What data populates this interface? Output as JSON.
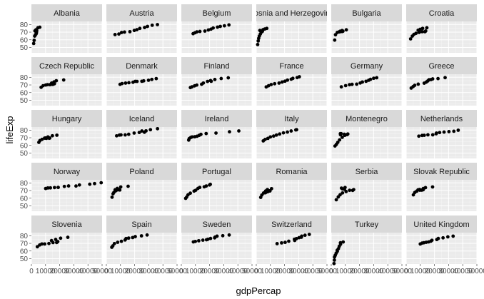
{
  "chart_data": {
    "type": "scatter",
    "xlabel": "gdpPercap",
    "ylabel": "lifeExp",
    "xlim": [
      0,
      50000
    ],
    "ylim": [
      43,
      84
    ],
    "x_ticks": [
      0,
      10000,
      20000,
      30000,
      40000,
      50000
    ],
    "x_tick_labels": [
      "0",
      "10000",
      "20000",
      "30000",
      "40000",
      "50000"
    ],
    "y_ticks": [
      50,
      60,
      70,
      80
    ],
    "y_tick_labels": [
      "50",
      "60",
      "70",
      "80"
    ],
    "grid": true,
    "panel_background": "#ebebeb",
    "strip_background": "#d9d9d9",
    "point_color": "#000000",
    "panels": [
      {
        "name": "Albania",
        "x": [
          1601,
          1942,
          2313,
          2760,
          3313,
          3533,
          3631,
          3739,
          2497,
          3193,
          4604,
          5937
        ],
        "y": [
          55.2,
          59.3,
          64.8,
          66.2,
          67.7,
          68.9,
          70.4,
          72.0,
          71.6,
          73.0,
          75.7,
          76.4
        ]
      },
      {
        "name": "Austria",
        "x": [
          6137,
          8843,
          10751,
          12835,
          16662,
          19749,
          21597,
          23688,
          27043,
          29096,
          32418,
          36126
        ],
        "y": [
          66.8,
          67.5,
          69.5,
          70.1,
          70.6,
          72.2,
          73.2,
          74.9,
          76.0,
          77.5,
          79.0,
          79.8
        ]
      },
      {
        "name": "Belgium",
        "x": [
          8343,
          9715,
          10991,
          13149,
          16672,
          19118,
          20980,
          22526,
          25576,
          27561,
          30486,
          33693
        ],
        "y": [
          68.0,
          69.2,
          70.3,
          70.9,
          71.4,
          72.8,
          73.9,
          75.4,
          76.5,
          77.5,
          78.3,
          79.4
        ]
      },
      {
        "name": "Bosnia and Herzegovina",
        "x": [
          974,
          1354,
          1710,
          2172,
          2860,
          3528,
          4127,
          4314,
          2546,
          4766,
          6019,
          7446
        ],
        "y": [
          53.8,
          58.5,
          61.9,
          64.8,
          67.5,
          69.9,
          70.7,
          71.1,
          72.2,
          73.2,
          74.1,
          74.9
        ]
      },
      {
        "name": "Bulgaria",
        "x": [
          2444,
          3009,
          4254,
          5578,
          6597,
          7612,
          8225,
          8240,
          6302,
          5970,
          7697,
          10681
        ],
        "y": [
          59.6,
          66.6,
          69.5,
          70.4,
          70.9,
          70.8,
          71.1,
          71.3,
          71.2,
          70.3,
          72.1,
          73.0
        ]
      },
      {
        "name": "Croatia",
        "x": [
          3119,
          4338,
          5478,
          6960,
          9164,
          11305,
          13222,
          13823,
          8448,
          9876,
          11628,
          14619
        ],
        "y": [
          61.2,
          64.8,
          67.1,
          68.5,
          69.6,
          70.6,
          70.5,
          71.5,
          72.5,
          73.7,
          74.9,
          75.7
        ]
      },
      {
        "name": "Czech Republic",
        "x": [
          6877,
          8256,
          10137,
          11399,
          13108,
          14800,
          15377,
          16310,
          14297,
          16049,
          17596,
          22833
        ],
        "y": [
          66.9,
          69.0,
          69.9,
          70.4,
          70.3,
          70.7,
          70.9,
          71.6,
          72.4,
          74.0,
          75.5,
          76.5
        ]
      },
      {
        "name": "Denmark",
        "x": [
          9692,
          11100,
          13583,
          15937,
          18866,
          20423,
          21688,
          25116,
          26407,
          29804,
          32167,
          35278
        ],
        "y": [
          70.8,
          71.8,
          72.4,
          72.9,
          73.5,
          74.7,
          74.6,
          74.8,
          75.3,
          76.1,
          77.2,
          78.3
        ]
      },
      {
        "name": "Finland",
        "x": [
          6425,
          7546,
          9372,
          10922,
          14359,
          15605,
          18533,
          21141,
          20647,
          23723,
          28205,
          33207
        ],
        "y": [
          66.6,
          67.5,
          68.8,
          69.8,
          70.9,
          72.5,
          74.6,
          74.8,
          75.7,
          77.1,
          78.4,
          79.3
        ]
      },
      {
        "name": "France",
        "x": [
          7030,
          8663,
          10560,
          12999,
          16107,
          18293,
          20294,
          22066,
          24704,
          25890,
          28926,
          30470
        ],
        "y": [
          67.4,
          68.9,
          70.5,
          71.6,
          72.4,
          73.8,
          74.9,
          76.3,
          77.5,
          78.6,
          79.6,
          80.7
        ]
      },
      {
        "name": "Germany",
        "x": [
          7144,
          10188,
          12902,
          14746,
          18016,
          20513,
          22032,
          24639,
          26505,
          27789,
          30036,
          32170
        ],
        "y": [
          67.5,
          69.1,
          70.3,
          70.8,
          71.0,
          72.5,
          73.8,
          74.8,
          76.1,
          77.3,
          78.7,
          79.4
        ]
      },
      {
        "name": "Greece",
        "x": [
          3531,
          4916,
          6017,
          8513,
          12725,
          14196,
          15268,
          16121,
          17541,
          18748,
          22514,
          27538
        ],
        "y": [
          65.9,
          67.9,
          69.5,
          71.0,
          72.3,
          73.7,
          75.2,
          76.7,
          77.0,
          77.9,
          78.3,
          79.5
        ]
      },
      {
        "name": "Hungary",
        "x": [
          5264,
          6040,
          7550,
          9326,
          10168,
          11675,
          12546,
          12986,
          10536,
          11712,
          14843,
          18009
        ],
        "y": [
          64.0,
          66.4,
          67.9,
          69.5,
          69.8,
          69.9,
          69.4,
          69.6,
          69.2,
          71.0,
          72.6,
          73.3
        ]
      },
      {
        "name": "Iceland",
        "x": [
          7268,
          9244,
          10350,
          13320,
          15798,
          19655,
          23270,
          26923,
          25144,
          28061,
          31163,
          36181
        ],
        "y": [
          72.5,
          73.5,
          73.7,
          73.7,
          74.5,
          76.1,
          76.9,
          77.2,
          78.8,
          79.0,
          80.5,
          81.8
        ]
      },
      {
        "name": "Ireland",
        "x": [
          5210,
          5599,
          6632,
          7656,
          9531,
          11151,
          12618,
          13872,
          17558,
          24522,
          34077,
          40676
        ],
        "y": [
          66.9,
          68.9,
          70.3,
          71.1,
          71.3,
          72.0,
          73.1,
          74.4,
          75.5,
          76.1,
          77.8,
          78.9
        ]
      },
      {
        "name": "Italy",
        "x": [
          4931,
          6249,
          8244,
          10022,
          12269,
          14256,
          16537,
          19207,
          22014,
          24675,
          27968,
          28570
        ],
        "y": [
          65.9,
          67.8,
          69.2,
          71.1,
          72.2,
          73.5,
          74.9,
          76.4,
          77.4,
          78.8,
          80.2,
          80.5
        ]
      },
      {
        "name": "Montenegro",
        "x": [
          2648,
          3682,
          4649,
          5907,
          7779,
          9596,
          11223,
          11733,
          7003,
          6465,
          6558,
          9254
        ],
        "y": [
          59.2,
          61.4,
          64.0,
          67.2,
          70.6,
          73.1,
          74.1,
          74.9,
          75.4,
          75.4,
          73.9,
          74.5
        ]
      },
      {
        "name": "Netherlands",
        "x": [
          8942,
          11277,
          12791,
          15364,
          18795,
          21209,
          21400,
          23651,
          26791,
          30246,
          33725,
          36798
        ],
        "y": [
          72.1,
          72.99,
          73.2,
          73.8,
          73.8,
          75.2,
          76.1,
          76.8,
          77.4,
          78.0,
          78.5,
          79.8
        ]
      },
      {
        "name": "Norway",
        "x": [
          10095,
          11654,
          13450,
          16362,
          18965,
          23312,
          26298,
          31541,
          33966,
          41283,
          44684,
          49357
        ],
        "y": [
          72.7,
          73.4,
          73.5,
          73.9,
          74.1,
          75.4,
          76.0,
          75.9,
          77.3,
          78.3,
          79.1,
          80.2
        ]
      },
      {
        "name": "Poland",
        "x": [
          4029,
          4734,
          5339,
          6557,
          8007,
          9508,
          9082,
          7739,
          6207,
          7715,
          10160,
          15390
        ],
        "y": [
          61.3,
          65.8,
          67.6,
          69.6,
          70.9,
          70.7,
          71.3,
          70.98,
          70.99,
          72.8,
          74.7,
          75.6
        ]
      },
      {
        "name": "Portugal",
        "x": [
          3068,
          3775,
          4728,
          6362,
          9022,
          10172,
          11754,
          13039,
          16207,
          17641,
          19971,
          20510
        ],
        "y": [
          59.8,
          61.5,
          64.4,
          66.6,
          69.3,
          70.4,
          72.8,
          74.1,
          74.9,
          75.97,
          77.3,
          78.1
        ]
      },
      {
        "name": "Romania",
        "x": [
          3145,
          3944,
          5180,
          6471,
          8011,
          9356,
          9605,
          9697,
          6598,
          7346,
          7886,
          10808
        ],
        "y": [
          61.1,
          64.1,
          66.8,
          67.1,
          68.4,
          69.5,
          69.7,
          69.5,
          69.4,
          69.7,
          71.3,
          72.5
        ]
      },
      {
        "name": "Serbia",
        "x": [
          3581,
          4981,
          6290,
          7991,
          10523,
          12980,
          15181,
          15871,
          9326,
          7915,
          7236,
          9787
        ],
        "y": [
          58.0,
          61.7,
          64.5,
          66.9,
          68.7,
          70.3,
          70.2,
          71.2,
          71.7,
          72.2,
          73.2,
          74.0
        ]
      },
      {
        "name": "Slovak Republic",
        "x": [
          5074,
          6093,
          7482,
          8412,
          9674,
          10922,
          11348,
          12037,
          9498,
          12127,
          13638,
          18678
        ],
        "y": [
          64.4,
          67.5,
          69.2,
          70.98,
          70.4,
          70.5,
          70.8,
          71.1,
          71.4,
          72.7,
          73.8,
          74.7
        ]
      },
      {
        "name": "Slovenia",
        "x": [
          4215,
          5862,
          7402,
          9405,
          12384,
          15277,
          17866,
          18678,
          14215,
          17161,
          20660,
          25768
        ],
        "y": [
          65.6,
          67.9,
          69.2,
          69.2,
          69.8,
          70.97,
          71.1,
          72.3,
          73.6,
          75.1,
          76.7,
          77.9
        ]
      },
      {
        "name": "Spain",
        "x": [
          3834,
          4565,
          5694,
          7994,
          10639,
          13237,
          13926,
          15765,
          18603,
          20445,
          24835,
          28821
        ],
        "y": [
          64.9,
          66.7,
          69.7,
          71.4,
          72.7,
          74.4,
          76.3,
          76.9,
          77.6,
          78.8,
          79.8,
          80.9
        ]
      },
      {
        "name": "Sweden",
        "x": [
          8528,
          9912,
          12329,
          15259,
          17832,
          18856,
          20667,
          23587,
          23880,
          25267,
          29342,
          33860
        ],
        "y": [
          71.9,
          72.5,
          73.4,
          74.2,
          74.7,
          75.4,
          76.4,
          77.2,
          78.2,
          79.4,
          80.0,
          80.9
        ]
      },
      {
        "name": "Switzerland",
        "x": [
          14734,
          17909,
          20431,
          22966,
          27196,
          26982,
          28398,
          30282,
          31872,
          32136,
          34481,
          37506
        ],
        "y": [
          69.6,
          70.6,
          71.3,
          72.8,
          73.8,
          75.4,
          76.2,
          77.4,
          78.0,
          79.4,
          80.6,
          81.7
        ]
      },
      {
        "name": "Turkey",
        "x": [
          1969,
          2219,
          2323,
          2826,
          3451,
          4269,
          4241,
          5089,
          5678,
          6601,
          6508,
          8458
        ],
        "y": [
          43.6,
          48.1,
          52.1,
          54.3,
          57.0,
          59.5,
          61.0,
          63.1,
          66.1,
          68.8,
          70.8,
          71.8
        ]
      },
      {
        "name": "United Kingdom",
        "x": [
          9980,
          11283,
          12477,
          14143,
          15895,
          17429,
          18232,
          21665,
          22706,
          26075,
          29479,
          33203
        ],
        "y": [
          69.2,
          70.4,
          70.8,
          71.4,
          71.9,
          72.8,
          74.0,
          75.0,
          76.4,
          77.2,
          78.5,
          79.4
        ]
      }
    ]
  }
}
